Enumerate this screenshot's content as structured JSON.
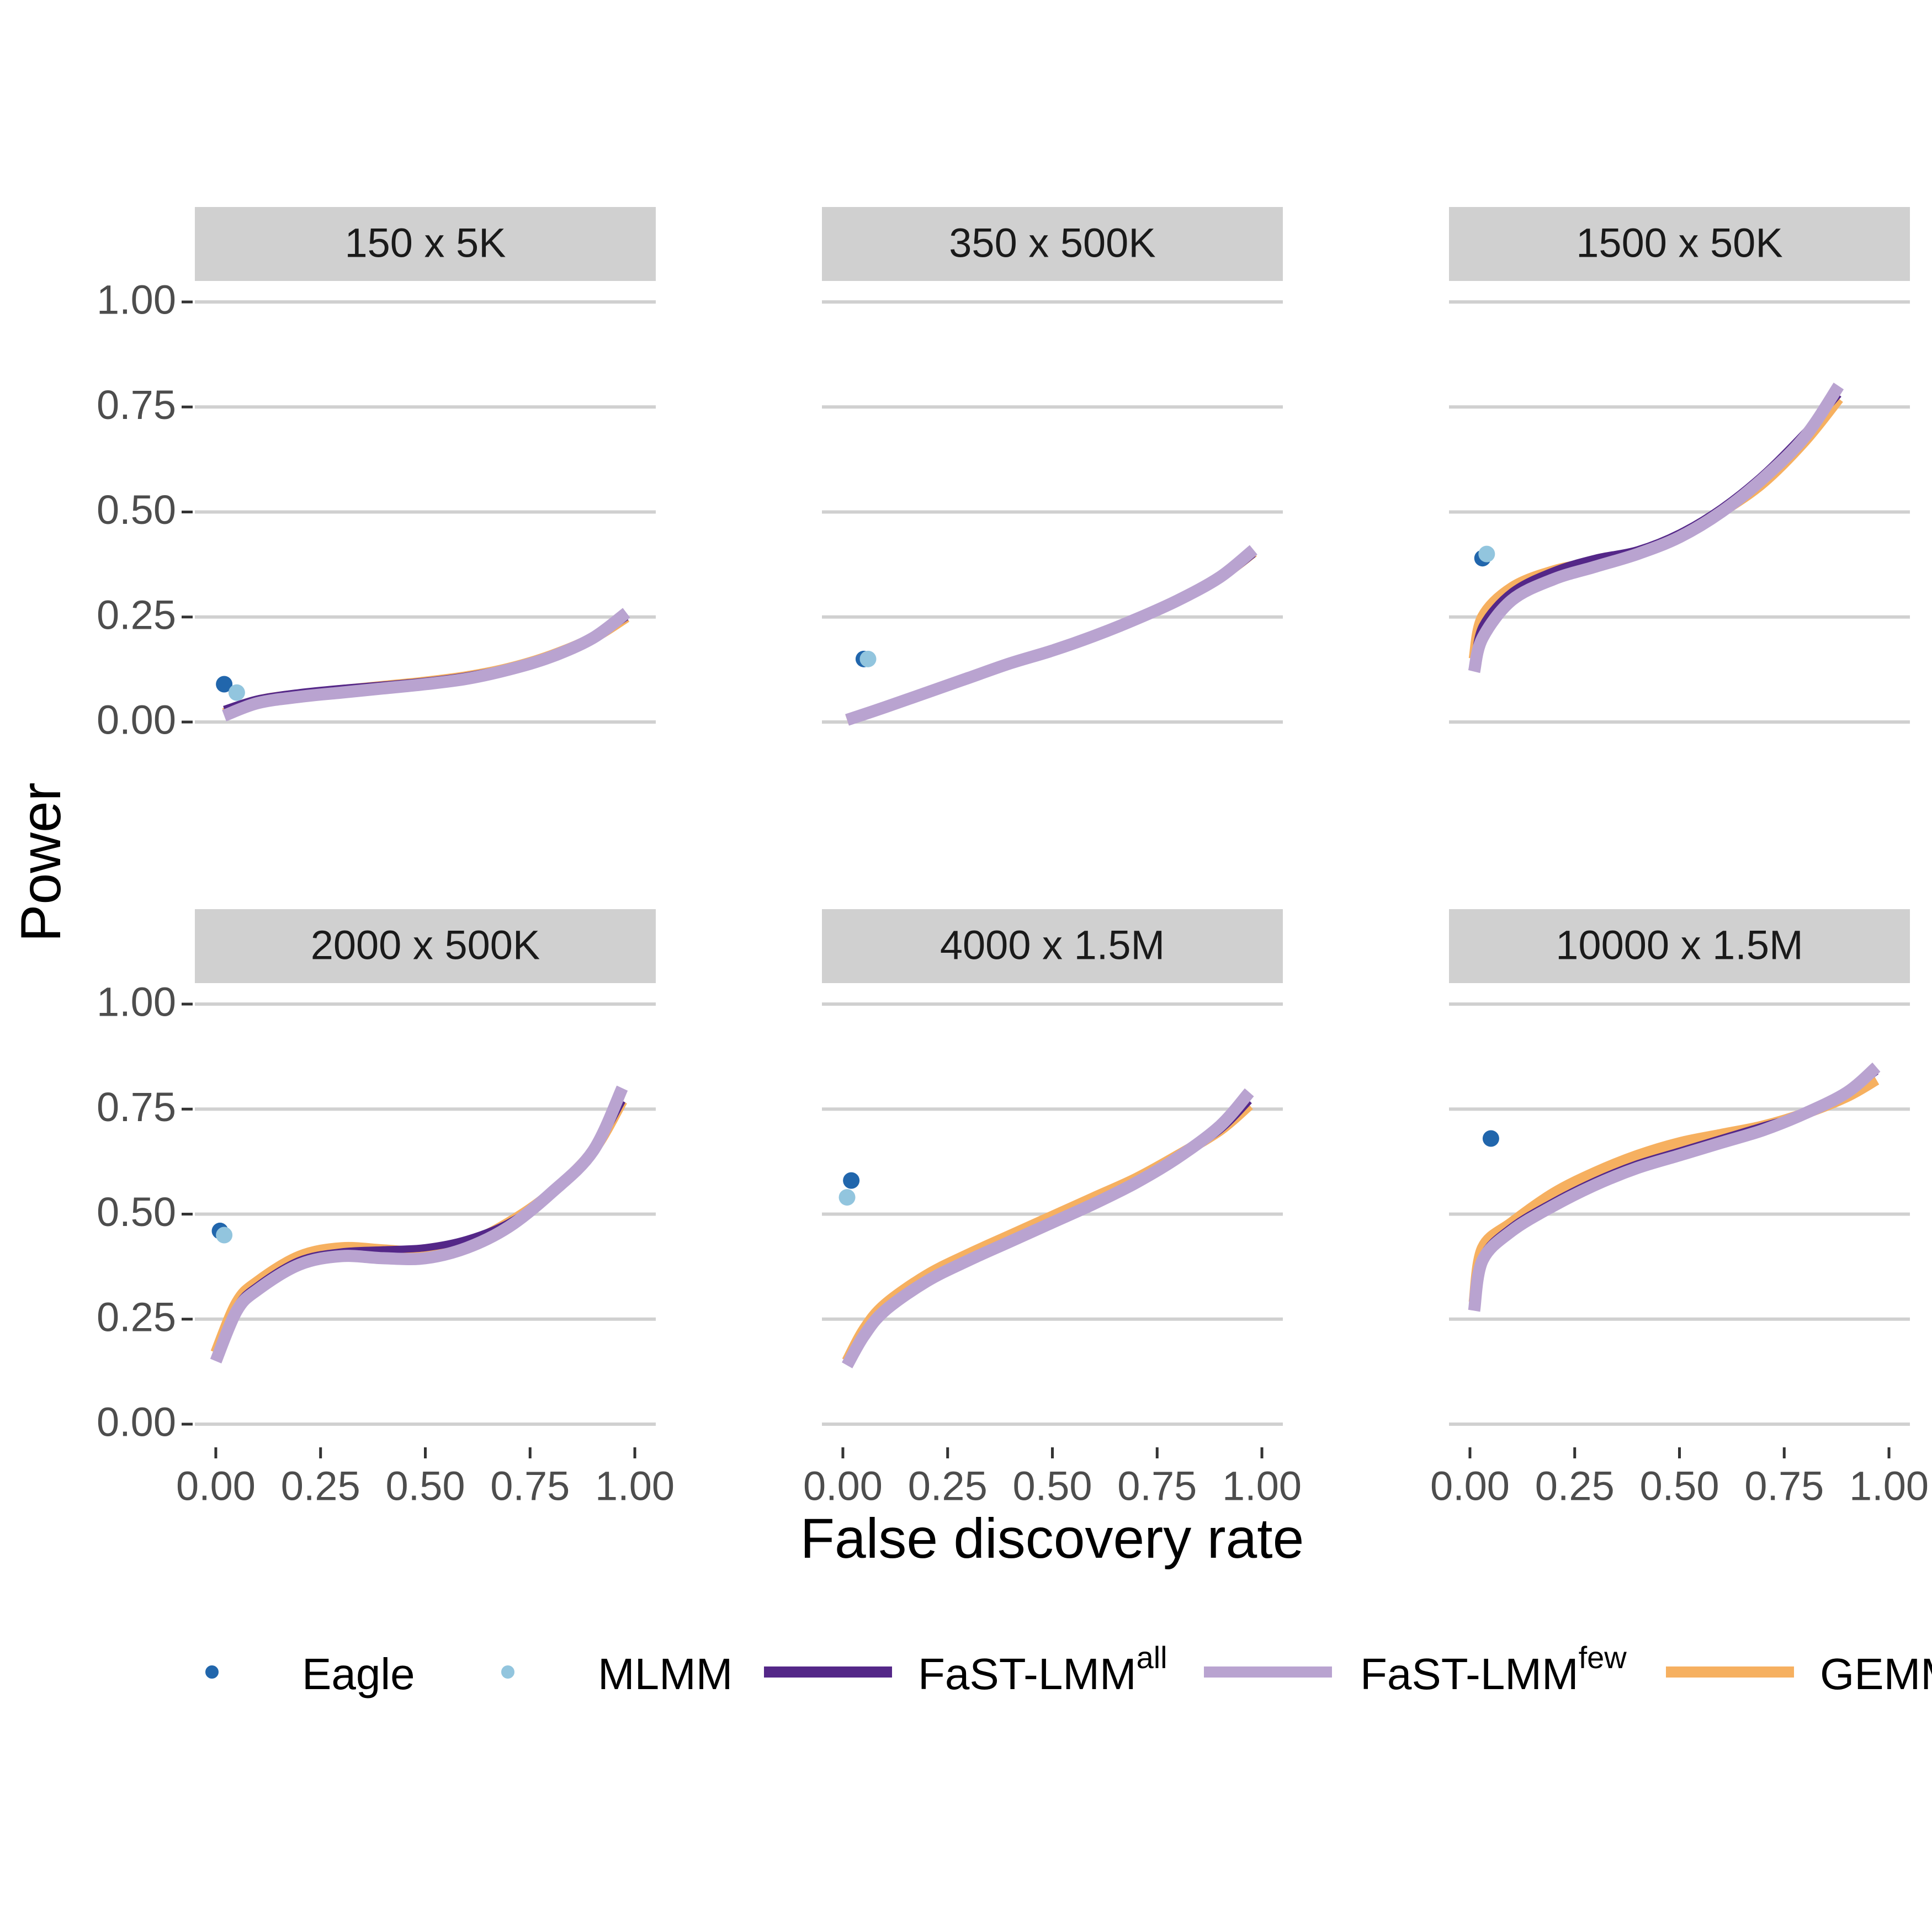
{
  "chart_data": {
    "type": "line",
    "x_label": "False discovery rate",
    "y_label": "Power",
    "xlim": [
      -0.05,
      1.05
    ],
    "ylim": [
      -0.05,
      1.05
    ],
    "xticks": [
      {
        "value": 0,
        "label": "0.00"
      },
      {
        "value": 0.25,
        "label": "0.25"
      },
      {
        "value": 0.5,
        "label": "0.50"
      },
      {
        "value": 0.75,
        "label": "0.75"
      },
      {
        "value": 1,
        "label": "1.00"
      }
    ],
    "yticks": [
      {
        "value": 0,
        "label": "0.00"
      },
      {
        "value": 0.25,
        "label": "0.25"
      },
      {
        "value": 0.5,
        "label": "0.50"
      },
      {
        "value": 0.75,
        "label": "0.75"
      },
      {
        "value": 1,
        "label": "1.00"
      }
    ],
    "grid": true,
    "series": [
      {
        "name": "Eagle",
        "color": "#2166ac",
        "mark": "point"
      },
      {
        "name": "MLMM",
        "color": "#92c5de",
        "mark": "point"
      },
      {
        "name": "FaST-LMM",
        "superscript": "all",
        "color": "#542788",
        "mark": "line"
      },
      {
        "name": "FaST-LMM",
        "superscript": "few",
        "color": "#b9a3d0",
        "mark": "line"
      },
      {
        "name": "GEMMA",
        "color": "#f6b060",
        "mark": "line"
      }
    ],
    "facets": [
      {
        "title": "150 x 5K",
        "points": [
          {
            "x": 0.02,
            "y": 0.09
          },
          {
            "x": 0.05,
            "y": 0.07
          }
        ],
        "x": [
          0.02,
          0.1,
          0.2,
          0.3,
          0.4,
          0.5,
          0.6,
          0.7,
          0.8,
          0.9,
          0.98
        ],
        "lines": [
          [
            0.03,
            0.055,
            0.07,
            0.08,
            0.088,
            0.097,
            0.11,
            0.13,
            0.16,
            0.2,
            0.25
          ],
          [
            0.015,
            0.045,
            0.06,
            0.07,
            0.08,
            0.09,
            0.103,
            0.125,
            0.155,
            0.2,
            0.26
          ],
          [
            0.02,
            0.05,
            0.065,
            0.075,
            0.085,
            0.095,
            0.108,
            0.128,
            0.158,
            0.2,
            0.25
          ]
        ]
      },
      {
        "title": "350 x 500K",
        "points": [
          {
            "x": 0.05,
            "y": 0.15
          },
          {
            "x": 0.06,
            "y": 0.15
          }
        ],
        "x": [
          0.01,
          0.1,
          0.2,
          0.3,
          0.4,
          0.5,
          0.6,
          0.7,
          0.8,
          0.9,
          0.98
        ],
        "lines": [
          [
            0.01,
            0.04,
            0.075,
            0.11,
            0.145,
            0.175,
            0.21,
            0.248,
            0.29,
            0.34,
            0.4
          ],
          [
            0.005,
            0.035,
            0.07,
            0.105,
            0.14,
            0.17,
            0.205,
            0.245,
            0.29,
            0.345,
            0.41
          ],
          [
            0.005,
            0.035,
            0.07,
            0.105,
            0.14,
            0.17,
            0.205,
            0.245,
            0.29,
            0.345,
            0.405
          ]
        ]
      },
      {
        "title": "1500 x 50K",
        "points": [
          {
            "x": 0.03,
            "y": 0.39
          },
          {
            "x": 0.04,
            "y": 0.4
          }
        ],
        "x": [
          0.01,
          0.03,
          0.1,
          0.2,
          0.3,
          0.4,
          0.5,
          0.6,
          0.7,
          0.8,
          0.88
        ],
        "lines": [
          [
            0.14,
            0.23,
            0.31,
            0.36,
            0.39,
            0.41,
            0.45,
            0.51,
            0.59,
            0.69,
            0.78
          ],
          [
            0.12,
            0.2,
            0.29,
            0.34,
            0.37,
            0.4,
            0.44,
            0.5,
            0.58,
            0.68,
            0.8
          ],
          [
            0.15,
            0.25,
            0.32,
            0.36,
            0.38,
            0.4,
            0.44,
            0.5,
            0.57,
            0.67,
            0.77
          ]
        ]
      },
      {
        "title": "2000 x 500K",
        "points": [
          {
            "x": 0.01,
            "y": 0.46
          },
          {
            "x": 0.02,
            "y": 0.45
          }
        ],
        "x": [
          0,
          0.05,
          0.1,
          0.2,
          0.3,
          0.4,
          0.5,
          0.6,
          0.7,
          0.8,
          0.9,
          0.97
        ],
        "lines": [
          [
            0.16,
            0.28,
            0.33,
            0.39,
            0.41,
            0.415,
            0.42,
            0.44,
            0.48,
            0.55,
            0.65,
            0.77
          ],
          [
            0.15,
            0.27,
            0.32,
            0.38,
            0.4,
            0.395,
            0.395,
            0.42,
            0.47,
            0.55,
            0.65,
            0.8
          ],
          [
            0.17,
            0.29,
            0.34,
            0.4,
            0.42,
            0.415,
            0.41,
            0.43,
            0.48,
            0.55,
            0.65,
            0.77
          ]
        ]
      },
      {
        "title": "4000 x 1.5M",
        "points": [
          {
            "x": 0.02,
            "y": 0.58
          },
          {
            "x": 0.01,
            "y": 0.54
          }
        ],
        "x": [
          0.01,
          0.05,
          0.1,
          0.2,
          0.3,
          0.4,
          0.5,
          0.6,
          0.7,
          0.8,
          0.9,
          0.97
        ],
        "lines": [
          [
            0.145,
            0.215,
            0.275,
            0.345,
            0.395,
            0.44,
            0.485,
            0.53,
            0.58,
            0.635,
            0.7,
            0.77
          ],
          [
            0.14,
            0.21,
            0.27,
            0.34,
            0.39,
            0.435,
            0.48,
            0.525,
            0.575,
            0.635,
            0.71,
            0.79
          ],
          [
            0.15,
            0.225,
            0.285,
            0.355,
            0.405,
            0.45,
            0.495,
            0.54,
            0.585,
            0.64,
            0.7,
            0.76
          ]
        ]
      },
      {
        "title": "10000 x 1.5M",
        "points": [
          {
            "x": 0.05,
            "y": 0.68
          },
          null
        ],
        "x": [
          0.01,
          0.03,
          0.1,
          0.2,
          0.3,
          0.4,
          0.5,
          0.6,
          0.7,
          0.8,
          0.9,
          0.97
        ],
        "lines": [
          [
            0.28,
            0.4,
            0.47,
            0.53,
            0.58,
            0.62,
            0.65,
            0.68,
            0.71,
            0.74,
            0.79,
            0.84
          ],
          [
            0.27,
            0.39,
            0.46,
            0.52,
            0.57,
            0.61,
            0.64,
            0.67,
            0.7,
            0.74,
            0.79,
            0.85
          ],
          [
            0.29,
            0.42,
            0.48,
            0.55,
            0.6,
            0.64,
            0.67,
            0.69,
            0.71,
            0.74,
            0.78,
            0.82
          ]
        ]
      }
    ]
  }
}
